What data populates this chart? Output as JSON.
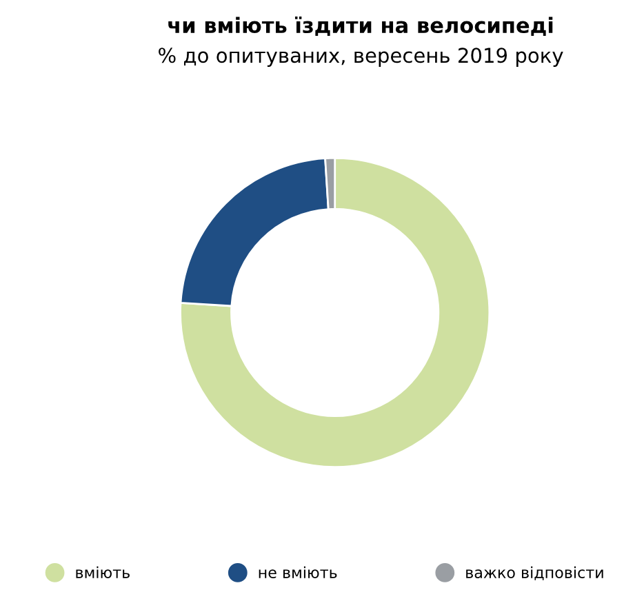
{
  "chart_data": {
    "type": "donut",
    "title": "чи вміють їздити на велосипеді",
    "subtitle": "% до опитуваних, вересень 2019 року",
    "categories": [
      "вміють",
      "не вміють",
      "важко відповісти"
    ],
    "values": [
      76,
      23,
      1
    ],
    "colors": [
      "#cfe0a0",
      "#1f4e84",
      "#9a9ea3"
    ],
    "legend": "bottom"
  }
}
